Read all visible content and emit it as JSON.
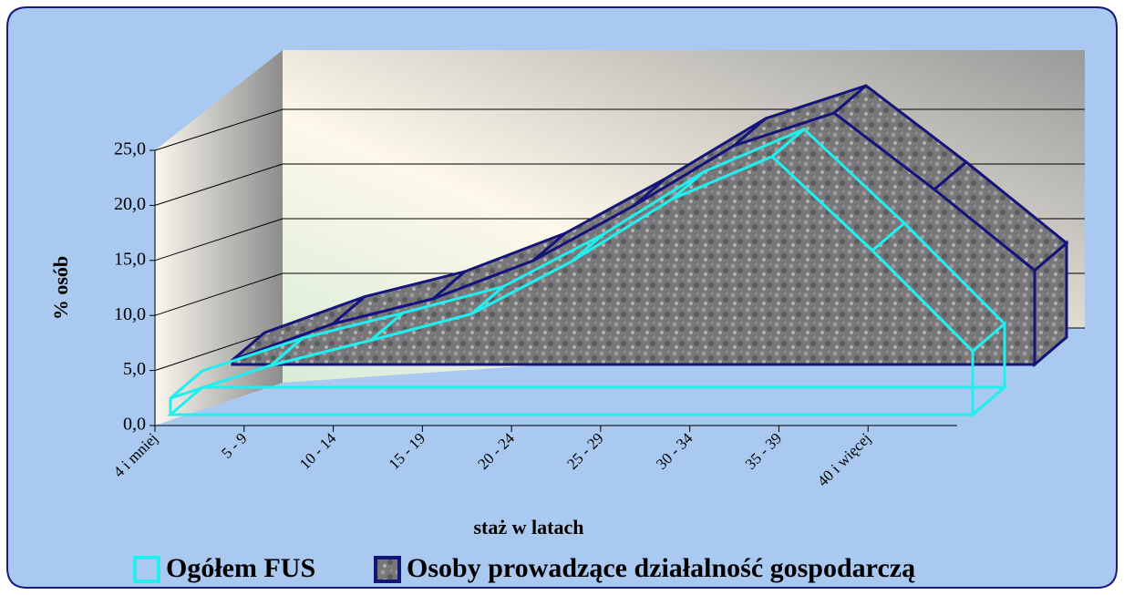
{
  "chart_data": {
    "type": "area3d",
    "y_label": "% osób",
    "x_label": "staż w latach",
    "categories": [
      "4 i mniej",
      "5 - 9",
      "10 - 14",
      "15 - 19",
      "20 - 24",
      "25 - 29",
      "30 - 34",
      "35 - 39",
      "40 i więcej"
    ],
    "series": [
      {
        "name": "Ogółem FUS",
        "color": "#22eeee",
        "values": [
          1.5,
          4.5,
          6.8,
          9.2,
          14.0,
          19.7,
          23.6,
          15.0,
          5.8
        ]
      },
      {
        "name": "Osoby prowadzące działalność gospodarczą",
        "color": "#14147a",
        "values": [
          0.4,
          3.7,
          6.0,
          9.5,
          14.5,
          20.0,
          23.0,
          16.0,
          8.6
        ]
      }
    ],
    "ylim": [
      0,
      25
    ],
    "yticks": [
      {
        "value": 0,
        "label": "0,0"
      },
      {
        "value": 5,
        "label": "5,0"
      },
      {
        "value": 10,
        "label": "10,0"
      },
      {
        "value": 15,
        "label": "15,0"
      },
      {
        "value": 20,
        "label": "20,0"
      },
      {
        "value": 25,
        "label": "25,0"
      }
    ],
    "grid": true
  }
}
